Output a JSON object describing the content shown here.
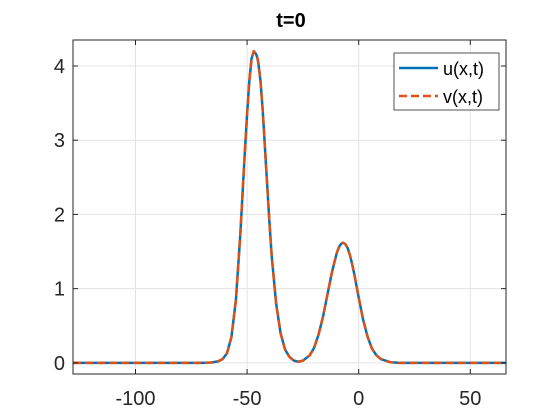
{
  "chart_data": {
    "type": "line",
    "title": "t=0",
    "xlabel": "",
    "ylabel": "",
    "xlim": [
      -128,
      66
    ],
    "ylim": [
      -0.15,
      4.35
    ],
    "xticks": [
      -100,
      -50,
      0,
      50
    ],
    "xtick_labels": [
      "-100",
      "-50",
      "0",
      "50"
    ],
    "yticks": [
      0,
      1,
      2,
      3,
      4
    ],
    "ytick_labels": [
      "0",
      "1",
      "2",
      "3",
      "4"
    ],
    "grid": true,
    "legend_position": "top-right",
    "series": [
      {
        "name": "u(x,t)",
        "style": "solid",
        "color": "#0072BD",
        "x": [
          -128,
          -90,
          -75,
          -70,
          -66,
          -63,
          -61,
          -59,
          -57,
          -55,
          -53,
          -51,
          -50,
          -49,
          -48,
          -47,
          -46.5,
          -46,
          -45.5,
          -45,
          -44,
          -43,
          -42,
          -41,
          -40,
          -39,
          -37,
          -35,
          -33,
          -31,
          -29,
          -27,
          -25,
          -22,
          -20,
          -18,
          -16,
          -14,
          -12,
          -10,
          -9,
          -8,
          -7,
          -6,
          -5,
          -4,
          -3,
          -2,
          -1,
          0,
          2,
          4,
          6,
          8,
          10,
          14,
          18,
          25,
          40,
          66
        ],
        "y": [
          0,
          0,
          0,
          0,
          0.005,
          0.02,
          0.05,
          0.13,
          0.35,
          0.85,
          1.75,
          2.85,
          3.35,
          3.8,
          4.1,
          4.2,
          4.18,
          4.16,
          4.12,
          4.05,
          3.8,
          3.4,
          2.9,
          2.4,
          1.9,
          1.45,
          0.8,
          0.4,
          0.18,
          0.08,
          0.03,
          0.015,
          0.03,
          0.1,
          0.2,
          0.38,
          0.62,
          0.92,
          1.22,
          1.46,
          1.55,
          1.6,
          1.62,
          1.6,
          1.55,
          1.46,
          1.34,
          1.2,
          1.04,
          0.88,
          0.58,
          0.35,
          0.19,
          0.1,
          0.05,
          0.01,
          0,
          0,
          0,
          0
        ]
      },
      {
        "name": "v(x,t)",
        "style": "dashed",
        "color": "#D95319",
        "x": [
          -128,
          -90,
          -75,
          -70,
          -66,
          -63,
          -61,
          -59,
          -57,
          -55,
          -53,
          -51,
          -50,
          -49,
          -48,
          -47,
          -46.5,
          -46,
          -45.5,
          -45,
          -44,
          -43,
          -42,
          -41,
          -40,
          -39,
          -37,
          -35,
          -33,
          -31,
          -29,
          -27,
          -25,
          -22,
          -20,
          -18,
          -16,
          -14,
          -12,
          -10,
          -9,
          -8,
          -7,
          -6,
          -5,
          -4,
          -3,
          -2,
          -1,
          0,
          2,
          4,
          6,
          8,
          10,
          14,
          18,
          25,
          40,
          66
        ],
        "y": [
          0,
          0,
          0,
          0,
          0.005,
          0.02,
          0.05,
          0.13,
          0.35,
          0.85,
          1.75,
          2.85,
          3.35,
          3.8,
          4.1,
          4.2,
          4.18,
          4.16,
          4.12,
          4.05,
          3.8,
          3.4,
          2.9,
          2.4,
          1.9,
          1.45,
          0.8,
          0.4,
          0.18,
          0.08,
          0.03,
          0.015,
          0.03,
          0.1,
          0.2,
          0.38,
          0.62,
          0.92,
          1.22,
          1.46,
          1.55,
          1.6,
          1.62,
          1.6,
          1.55,
          1.46,
          1.34,
          1.2,
          1.04,
          0.88,
          0.58,
          0.35,
          0.19,
          0.1,
          0.05,
          0.01,
          0,
          0,
          0,
          0
        ]
      }
    ]
  }
}
